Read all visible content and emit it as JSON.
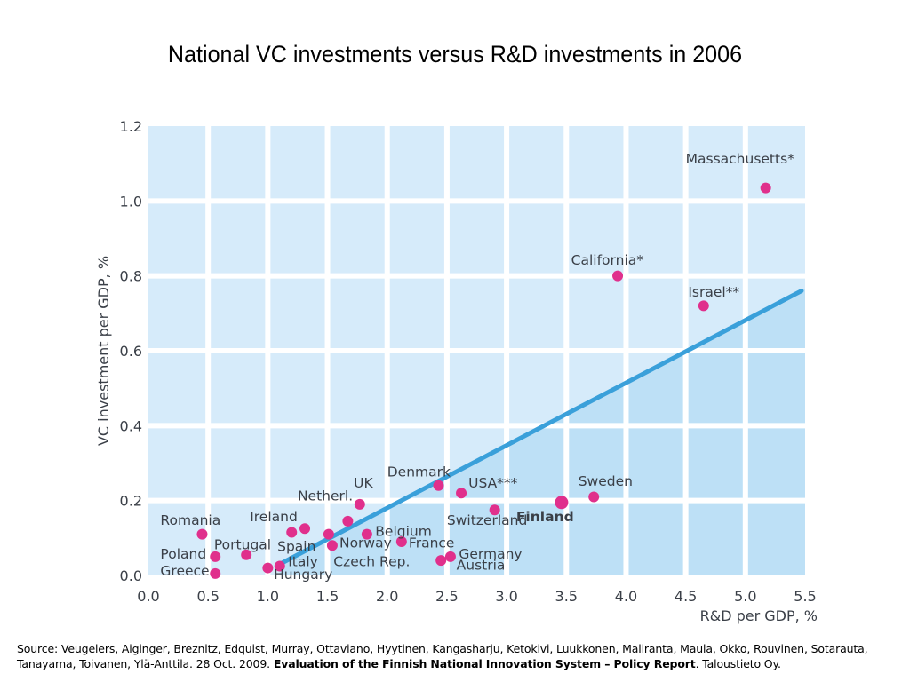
{
  "chart_data": {
    "type": "scatter",
    "title": "National VC investments versus R&D investments in 2006",
    "xlabel": "R&D per GDP, %",
    "ylabel": "VC investment per GDP, %",
    "xlim": [
      0.0,
      5.5
    ],
    "ylim": [
      0.0,
      1.2
    ],
    "xticks": [
      "0.0",
      "0.5",
      "1.0",
      "1.5",
      "2.0",
      "2.5",
      "3.0",
      "3.5",
      "4.0",
      "4.5",
      "5.0",
      "5.5"
    ],
    "yticks": [
      "0.0",
      "0.2",
      "0.4",
      "0.6",
      "0.8",
      "1.0",
      "1.2"
    ],
    "grid": true,
    "colors": {
      "background": "#d6ebfa",
      "below_trend": "#bde0f6",
      "grid": "#ffffff",
      "point": "#e0308c",
      "trend": "#3aa0da"
    },
    "trend_line": {
      "x": [
        1.1,
        5.47
      ],
      "y": [
        0.03,
        0.76
      ]
    },
    "points": [
      {
        "label": "Romania",
        "x": 0.45,
        "y": 0.11
      },
      {
        "label": "Poland",
        "x": 0.56,
        "y": 0.05
      },
      {
        "label": "Greece",
        "x": 0.56,
        "y": 0.005
      },
      {
        "label": "Portugal",
        "x": 0.82,
        "y": 0.055
      },
      {
        "label": "Hungary",
        "x": 1.0,
        "y": 0.02
      },
      {
        "label": "Italy",
        "x": 1.1,
        "y": 0.025
      },
      {
        "label": "Ireland",
        "x": 1.2,
        "y": 0.115
      },
      {
        "label": "Spain",
        "x": 1.31,
        "y": 0.125
      },
      {
        "label": "Czech Rep.",
        "x": 1.54,
        "y": 0.08
      },
      {
        "label": "Norway",
        "x": 1.51,
        "y": 0.11
      },
      {
        "label": "Netherl.",
        "x": 1.67,
        "y": 0.145
      },
      {
        "label": "UK",
        "x": 1.77,
        "y": 0.19
      },
      {
        "label": "Belgium",
        "x": 1.83,
        "y": 0.11
      },
      {
        "label": "France",
        "x": 2.12,
        "y": 0.09
      },
      {
        "label": "Denmark",
        "x": 2.43,
        "y": 0.24
      },
      {
        "label": "USA***",
        "x": 2.62,
        "y": 0.22
      },
      {
        "label": "Austria",
        "x": 2.45,
        "y": 0.04
      },
      {
        "label": "Germany",
        "x": 2.53,
        "y": 0.05
      },
      {
        "label": "Switzerland",
        "x": 2.9,
        "y": 0.175
      },
      {
        "label": "Finland",
        "x": 3.46,
        "y": 0.195,
        "highlight": true
      },
      {
        "label": "Sweden",
        "x": 3.73,
        "y": 0.21
      },
      {
        "label": "California*",
        "x": 3.93,
        "y": 0.8
      },
      {
        "label": "Israel**",
        "x": 4.65,
        "y": 0.72
      },
      {
        "label": "Massachusetts*",
        "x": 5.17,
        "y": 1.035
      }
    ],
    "labels": [
      {
        "text": "Romania",
        "x": 0.1,
        "y": 0.135
      },
      {
        "text": "Poland",
        "x": 0.1,
        "y": 0.045
      },
      {
        "text": "Greece",
        "x": 0.1,
        "y": 0.0
      },
      {
        "text": "Portugal",
        "x": 0.55,
        "y": 0.07
      },
      {
        "text": "Hungary",
        "x": 1.05,
        "y": -0.01
      },
      {
        "text": "Italy",
        "x": 1.17,
        "y": 0.025
      },
      {
        "text": "Spain",
        "x": 1.08,
        "y": 0.065
      },
      {
        "text": "Ireland",
        "x": 0.85,
        "y": 0.145
      },
      {
        "text": "Netherl.",
        "x": 1.25,
        "y": 0.2
      },
      {
        "text": "UK",
        "x": 1.72,
        "y": 0.235
      },
      {
        "text": "Norway",
        "x": 1.6,
        "y": 0.075
      },
      {
        "text": "Czech Rep.",
        "x": 1.55,
        "y": 0.025
      },
      {
        "text": "Belgium",
        "x": 1.9,
        "y": 0.105
      },
      {
        "text": "France",
        "x": 2.18,
        "y": 0.075
      },
      {
        "text": "Denmark",
        "x": 2.0,
        "y": 0.265
      },
      {
        "text": "USA***",
        "x": 2.68,
        "y": 0.235
      },
      {
        "text": "Switzerland",
        "x": 2.5,
        "y": 0.135
      },
      {
        "text": "Germany",
        "x": 2.6,
        "y": 0.045
      },
      {
        "text": "Austria",
        "x": 2.58,
        "y": 0.015
      },
      {
        "text": "Finland",
        "x": 3.08,
        "y": 0.145
      },
      {
        "text": "Sweden",
        "x": 3.6,
        "y": 0.24
      },
      {
        "text": "California*",
        "x": 3.54,
        "y": 0.83
      },
      {
        "text": "Israel**",
        "x": 4.52,
        "y": 0.745
      },
      {
        "text": "Massachusetts*",
        "x": 4.5,
        "y": 1.1
      }
    ]
  },
  "source": {
    "prefix": "Source: Veugelers, Aiginger, Breznitz, Edquist, Murray, Ottaviano, Hyytinen, Kangasharju, Ketokivi, Luukkonen, Maliranta, Maula, Okko, Rouvinen, Sotarauta, Tanayama, Toivanen, Ylä-Anttila. 28 Oct. 2009. ",
    "bold": "Evaluation of the Finnish National Innovation System – Policy Report",
    "suffix": ". Taloustieto Oy."
  }
}
